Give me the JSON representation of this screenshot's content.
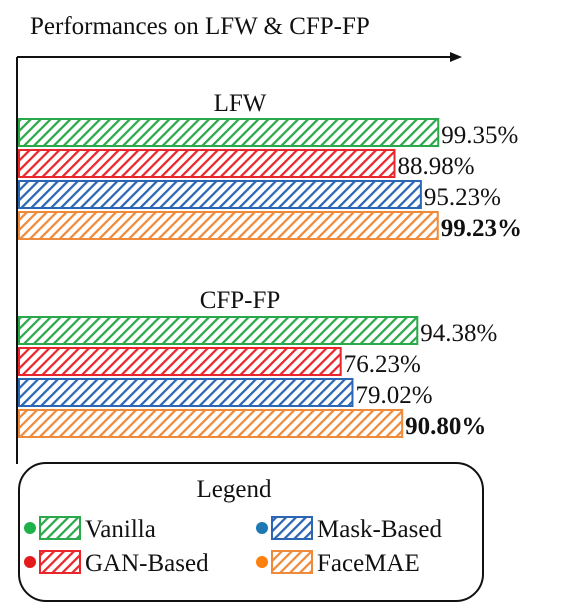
{
  "chart_data": {
    "type": "bar",
    "orientation": "horizontal",
    "title": "Performances on LFW & CFP-FP",
    "x_axis": "arrow to the right, no ticks",
    "grid": false,
    "series": [
      {
        "name": "Vanilla",
        "color": "#2aa84a",
        "hatch": "diagonal"
      },
      {
        "name": "GAN-Based",
        "color": "#e8262b",
        "hatch": "diagonal"
      },
      {
        "name": "Mask-Based",
        "color": "#2a66b3",
        "hatch": "diagonal"
      },
      {
        "name": "FaceMAE",
        "color": "#ee8a3a",
        "hatch": "diagonal"
      }
    ],
    "groups": [
      {
        "name": "LFW",
        "values": [
          99.35,
          88.98,
          95.23,
          99.23
        ],
        "labels": [
          "99.35%",
          "88.98%",
          "95.23%",
          "99.23%"
        ],
        "bold": [
          false,
          false,
          false,
          true
        ]
      },
      {
        "name": "CFP-FP",
        "values": [
          94.38,
          76.23,
          79.02,
          90.8
        ],
        "labels": [
          "94.38%",
          "76.23%",
          "79.02%",
          "90.80%"
        ],
        "bold": [
          false,
          false,
          false,
          true
        ]
      }
    ],
    "legend": {
      "title": "Legend",
      "placement": "bottom",
      "dot_colors": [
        "#1fb24a",
        "#e41a1c",
        "#1f78b4",
        "#ff7f0e"
      ]
    }
  }
}
